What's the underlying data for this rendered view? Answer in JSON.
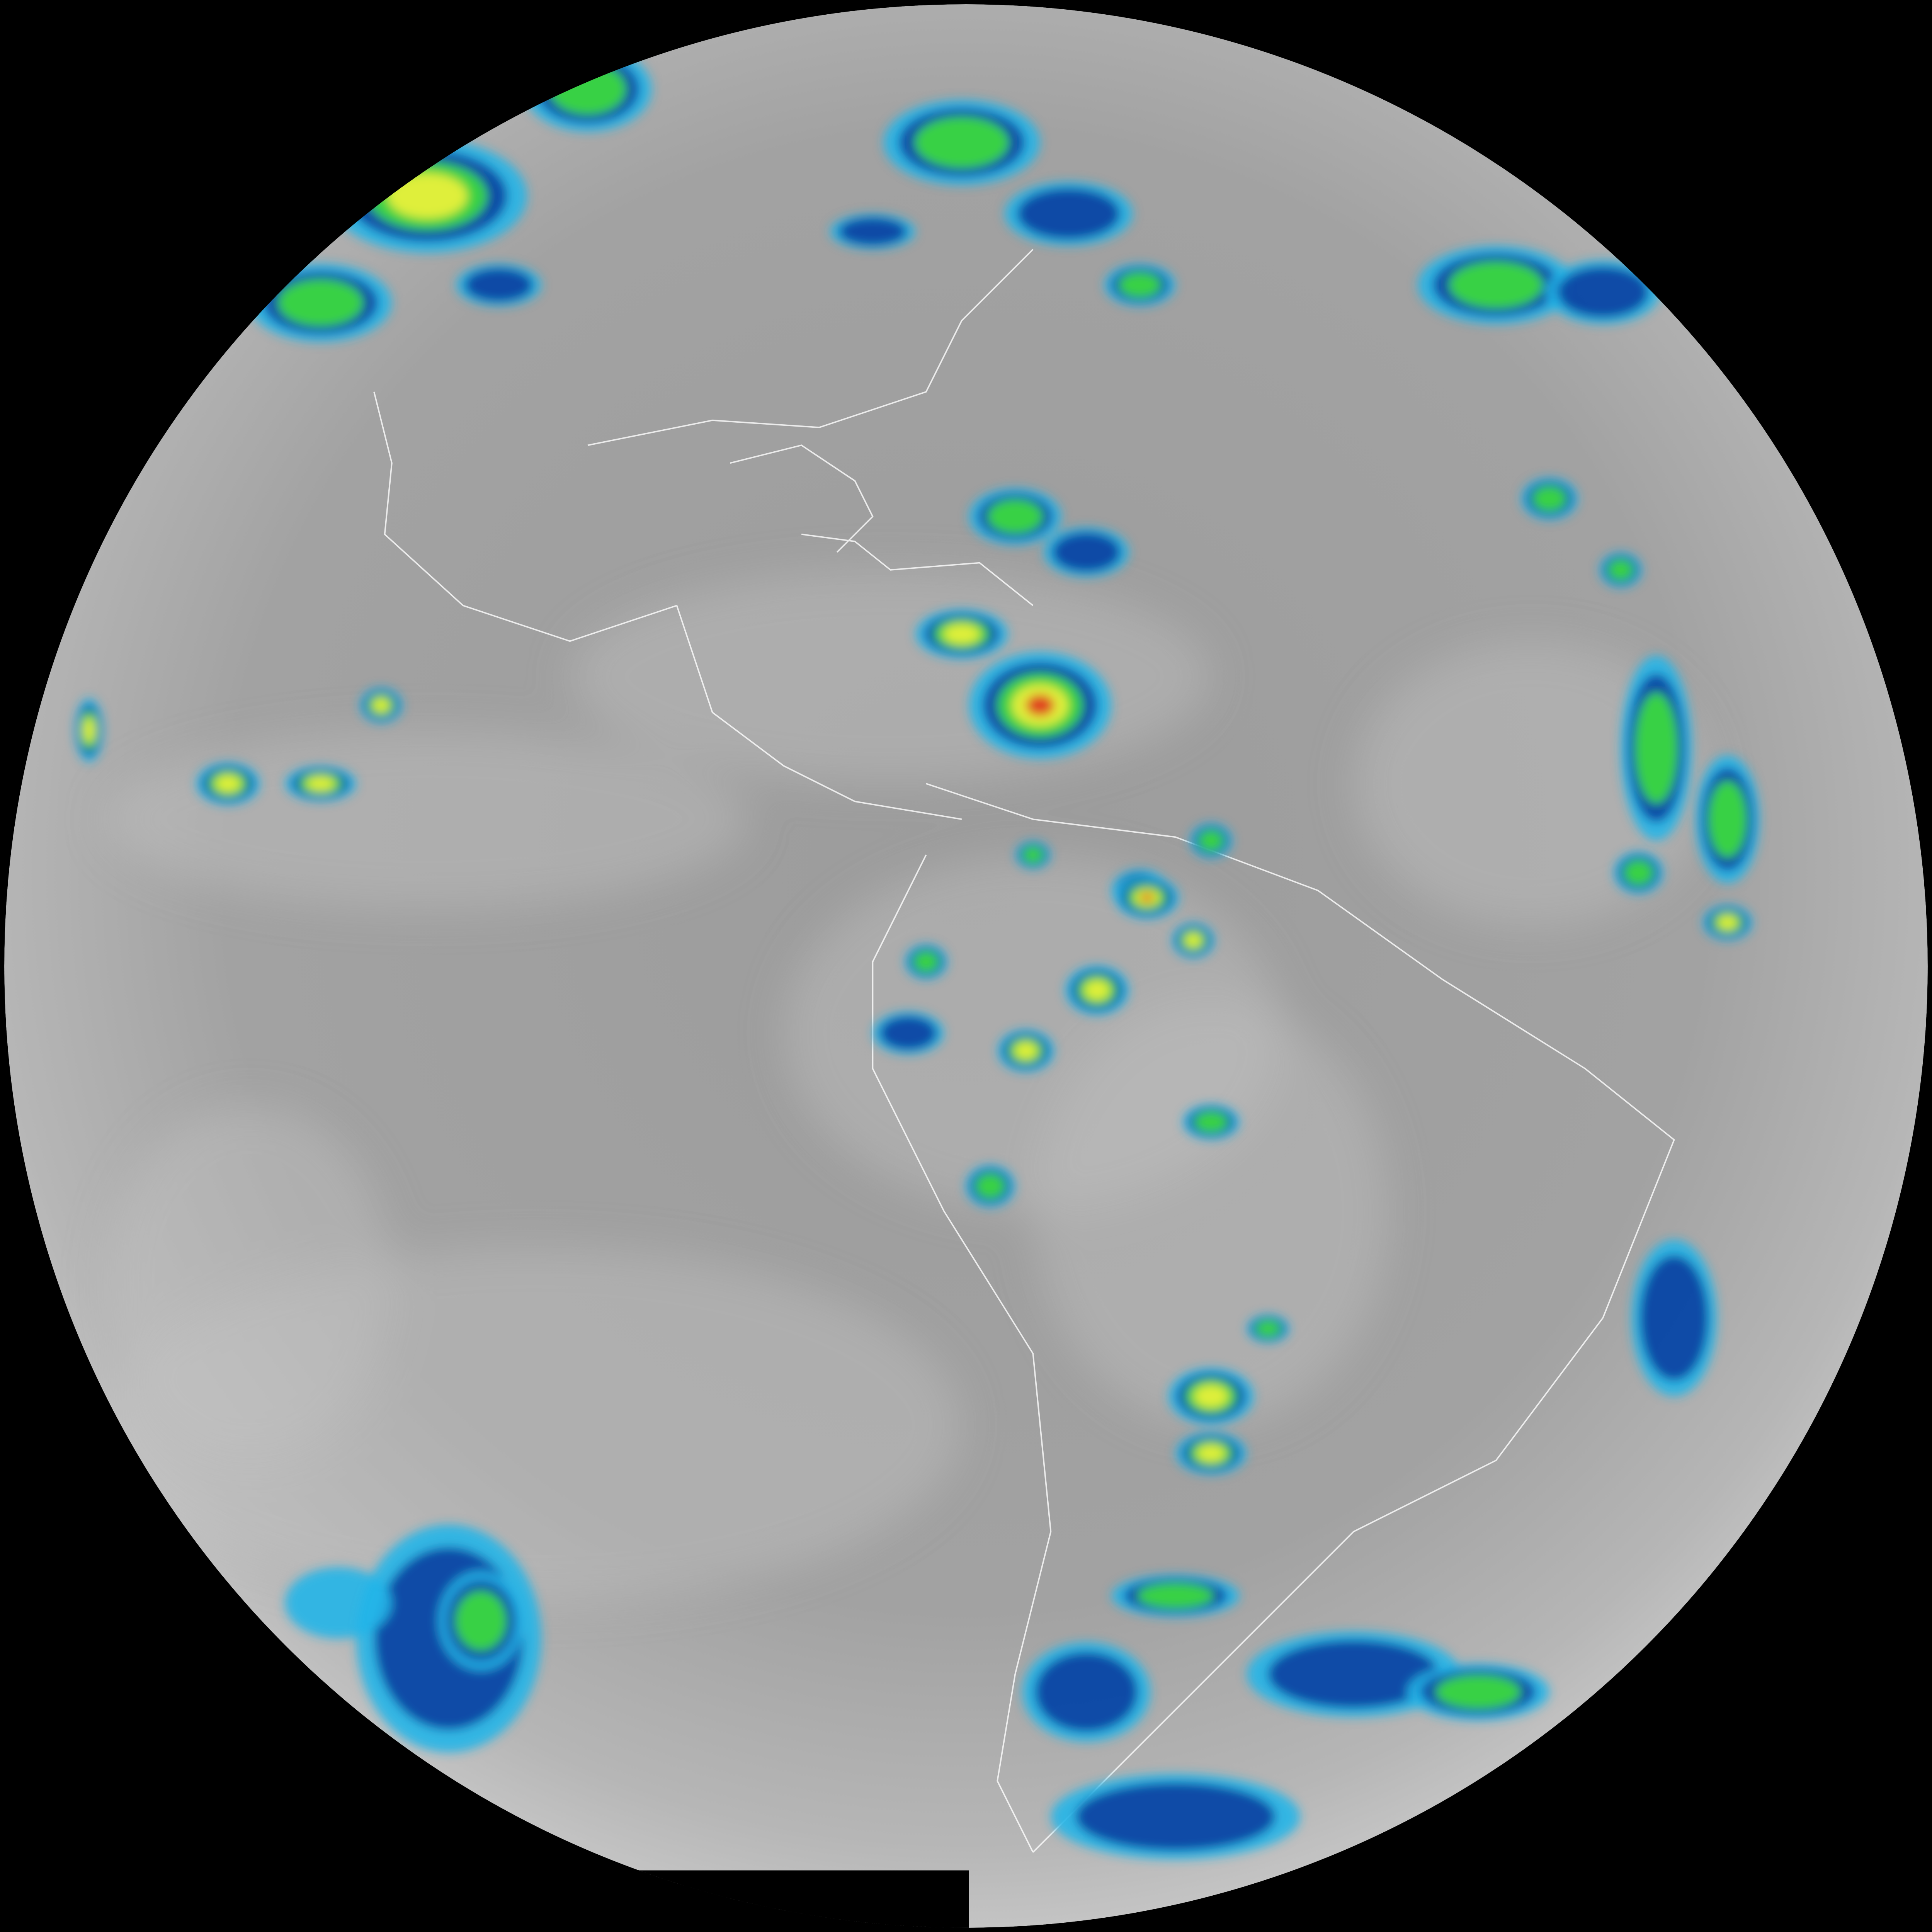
{
  "image": {
    "kind": "full-disk infrared satellite view of the Americas",
    "colors": {
      "space": "#000000",
      "disk_light": "#b4b4b4",
      "disk_mid": "#9a9a9a",
      "disk_dark": "#7e7e7e",
      "border_lines": "#ffffff",
      "cold_cyan": "#22b5e8",
      "cold_blue": "#0a3fa0",
      "cold_navy": "#0b1f6e",
      "cold_green": "#3ee03a",
      "cold_yellow": "#f2f23a",
      "cold_orange": "#f08a1e",
      "cold_red": "#e0301e"
    },
    "icons": [
      "earth-disk",
      "cloud-top-cluster",
      "coastline-outline"
    ]
  }
}
